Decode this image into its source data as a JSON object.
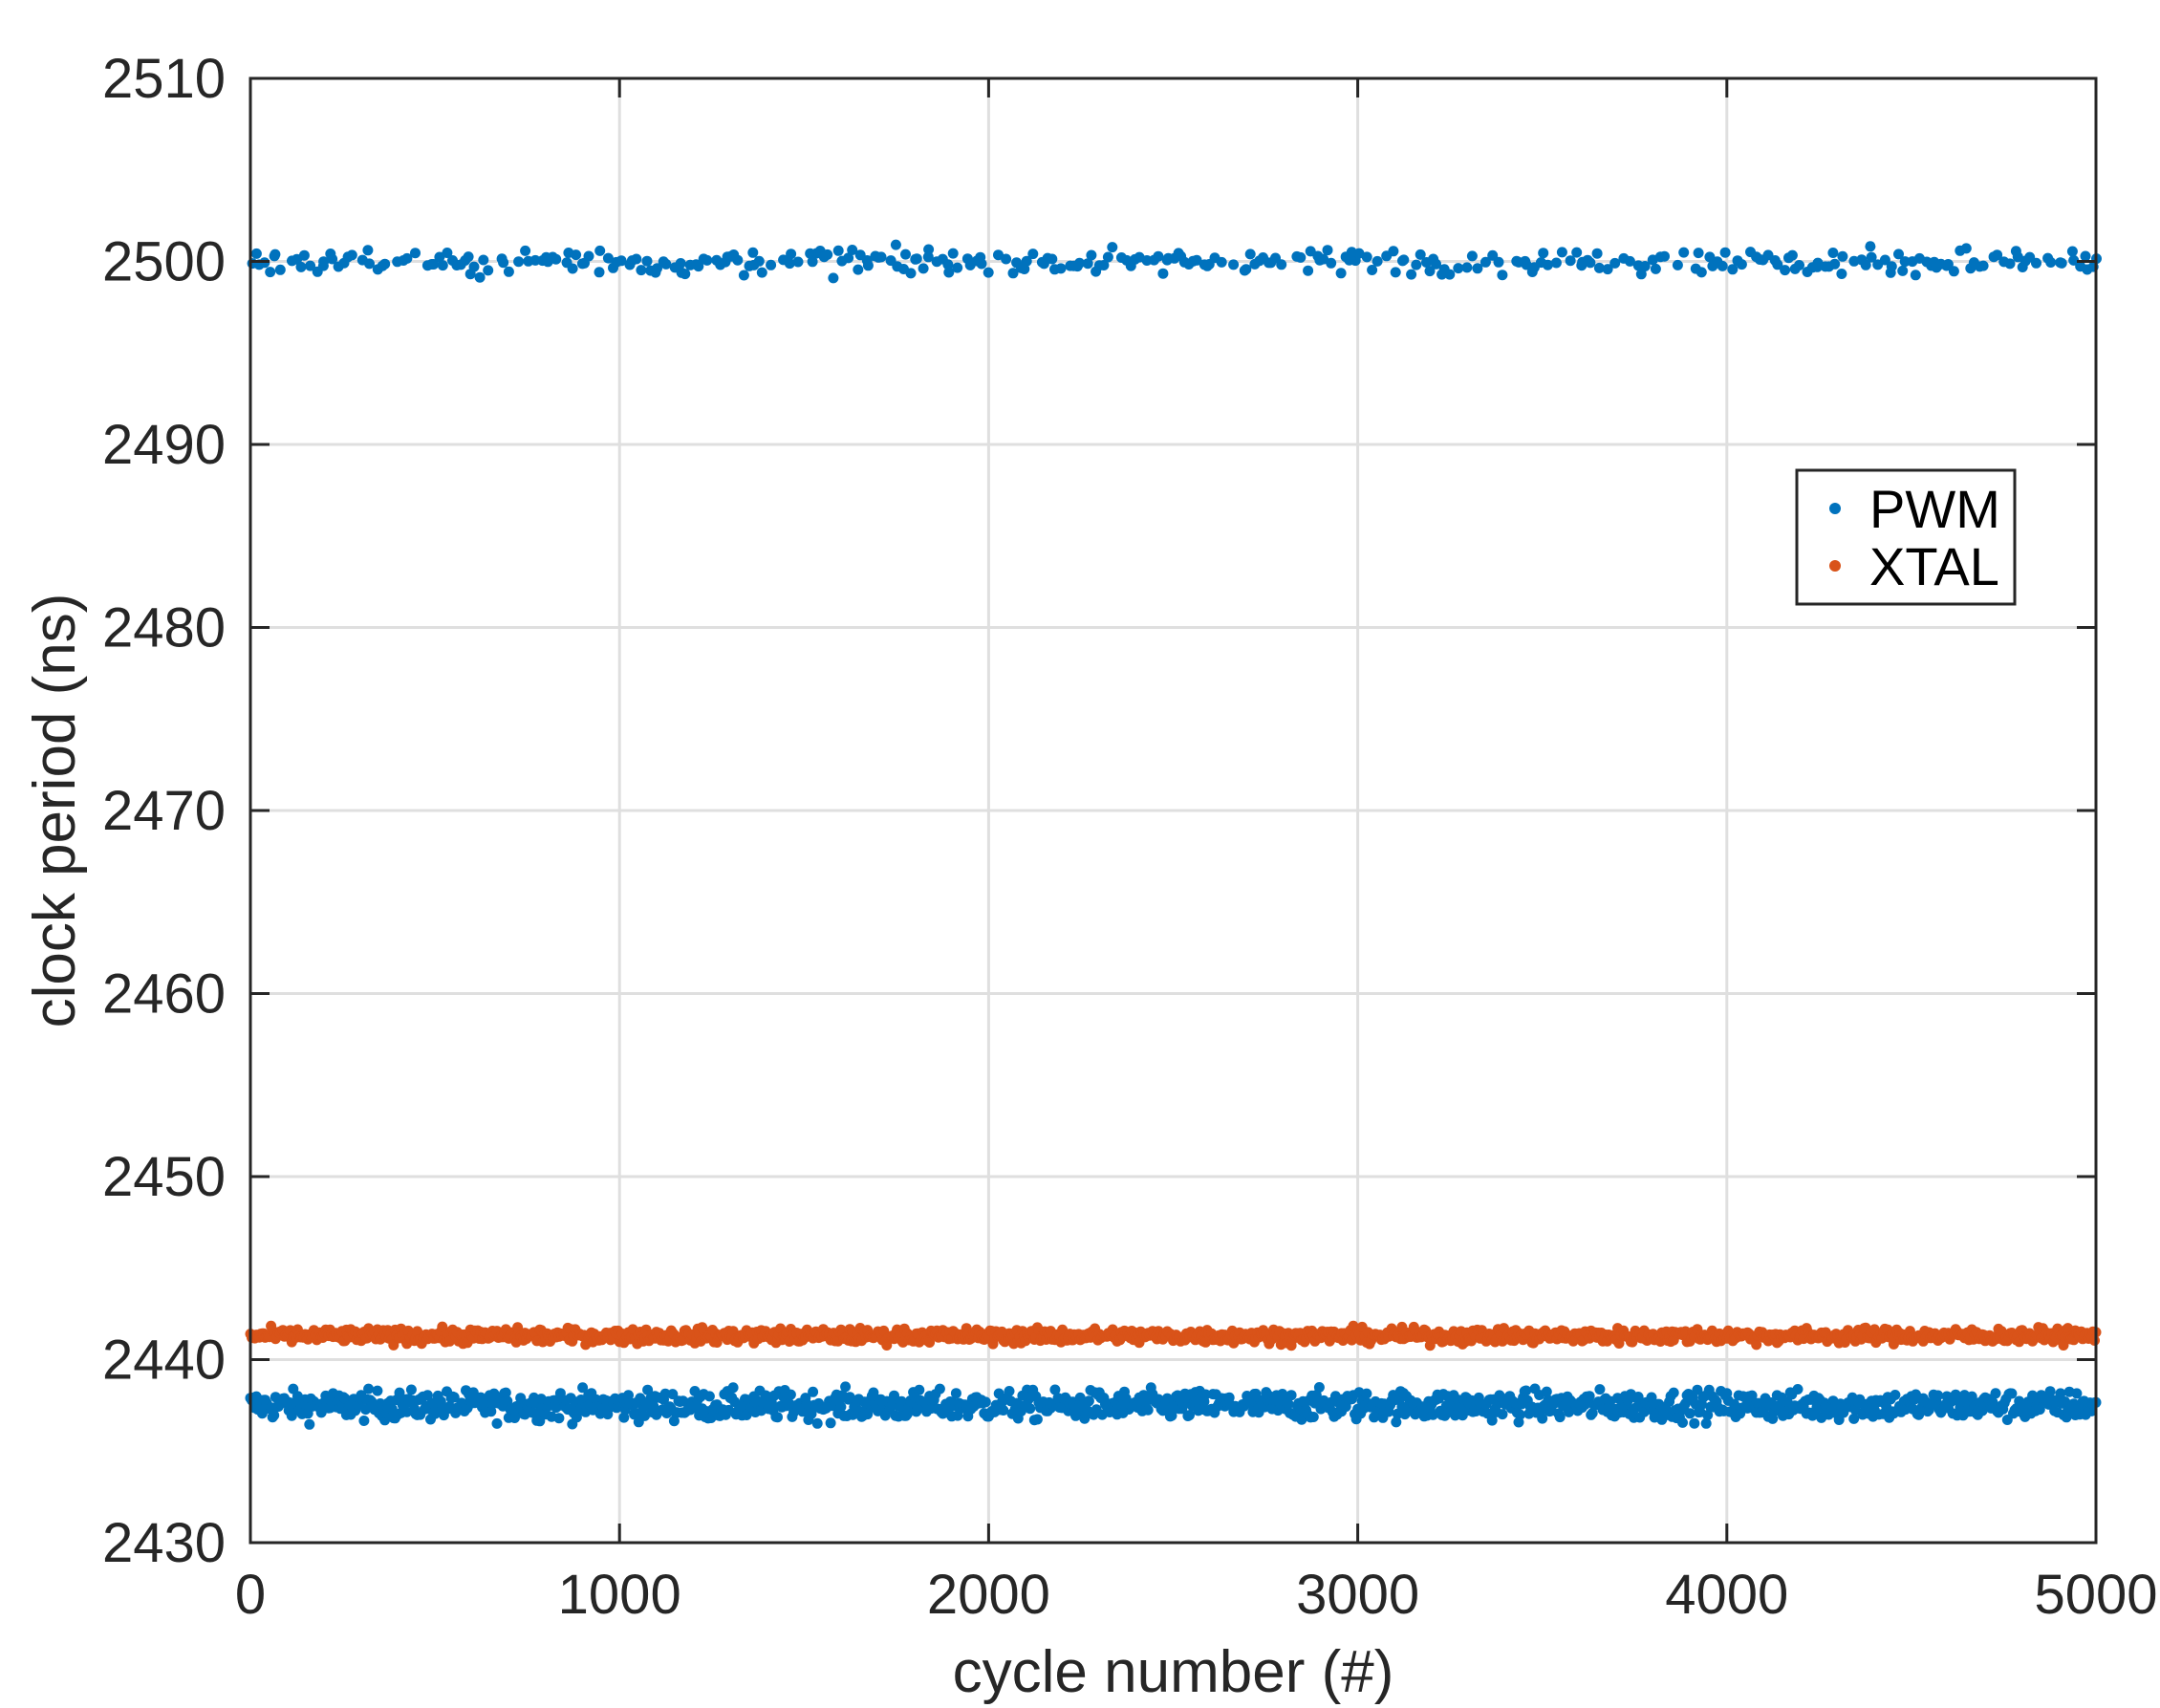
{
  "chart_data": {
    "type": "scatter",
    "title": "",
    "xlabel": "cycle number (#)",
    "ylabel": "clock period (ns)",
    "xlim": [
      0,
      5000
    ],
    "ylim": [
      2430,
      2510
    ],
    "x_ticks": [
      0,
      1000,
      2000,
      3000,
      4000,
      5000
    ],
    "y_ticks": [
      2430,
      2440,
      2450,
      2460,
      2470,
      2480,
      2490,
      2500,
      2510
    ],
    "grid": true,
    "legend_position": "upper-right",
    "series": [
      {
        "name": "PWM",
        "color": "#0072BD",
        "clusters": [
          {
            "level": 2437.5,
            "spread": 0.4,
            "step": 4,
            "x_range": [
              0,
              5000
            ]
          },
          {
            "level": 2500.0,
            "spread": 0.35,
            "step": 11,
            "x_range": [
              0,
              5000
            ]
          }
        ]
      },
      {
        "name": "XTAL",
        "color": "#D95319",
        "clusters": [
          {
            "level": 2441.3,
            "spread": 0.2,
            "step": 4,
            "x_range": [
              0,
              5000
            ]
          }
        ]
      }
    ]
  }
}
